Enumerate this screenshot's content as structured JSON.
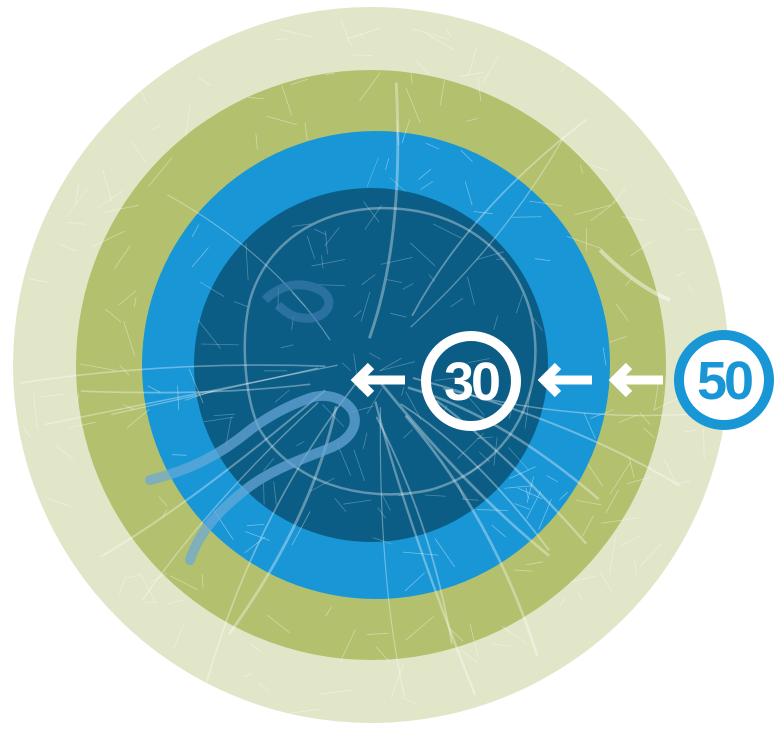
{
  "zones": {
    "outer": {
      "color": "#e1e6c8"
    },
    "middle": {
      "color": "#b3c06e"
    },
    "inner": {
      "color": "#1896d6"
    },
    "core": {
      "color": "#0b5d86"
    }
  },
  "map_lines": {
    "color": "#ffffff"
  },
  "signs": {
    "inner_limit": {
      "value": "30",
      "ring_color": "#ffffff",
      "text_color": "#ffffff"
    },
    "outer_limit": {
      "value": "50",
      "ring_color": "#1896d6",
      "text_color": "#1896d6"
    }
  },
  "arrows": [
    {
      "name": "arrow-into-core",
      "icon": "arrow-left-icon",
      "color": "#ffffff"
    },
    {
      "name": "arrow-into-inner-zone",
      "icon": "arrow-left-icon",
      "color": "#ffffff"
    },
    {
      "name": "arrow-from-outer-zone",
      "icon": "arrow-left-icon",
      "color": "#ffffff"
    }
  ]
}
